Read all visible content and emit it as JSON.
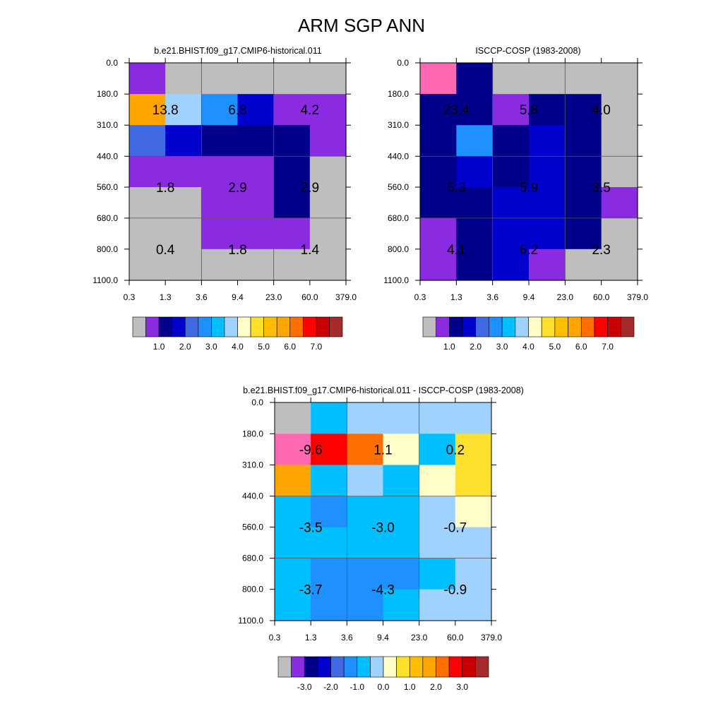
{
  "figure": {
    "title": "ARM SGP ANN"
  },
  "colors": {
    "missing": "#bebebe",
    "abs_palette": [
      "#8a2be2",
      "#00008b",
      "#0000cd",
      "#4169e1",
      "#1e90ff",
      "#00bfff",
      "#a0d2ff",
      "#ffffc8",
      "#ffe12d",
      "#ffbe00",
      "#ffa500",
      "#ff6e00",
      "#ff0000",
      "#c80000",
      "#a52a2a",
      "#ff69b4"
    ],
    "diff_palette": [
      "#8a2be2",
      "#00008b",
      "#0000cd",
      "#4169e1",
      "#1e90ff",
      "#00bfff",
      "#a0d2ff",
      "#ffffc8",
      "#ffe12d",
      "#ffbe00",
      "#ffa500",
      "#ff6e00",
      "#ff0000",
      "#c80000",
      "#a52a2a",
      "#ff69b4"
    ]
  },
  "chart_data": [
    {
      "type": "heatmap",
      "title": "b.e21.BHIST.f09_g17.CMIP6-historical.011",
      "x_ticks": [
        "0.3",
        "1.3",
        "3.6",
        "9.4",
        "23.0",
        "60.0",
        "379.0"
      ],
      "y_ticks": [
        "0.0",
        "180.0",
        "310.0",
        "440.0",
        "560.0",
        "680.0",
        "800.0",
        "1100.0"
      ],
      "cell_colors": [
        [
          0,
          16,
          16,
          16,
          16,
          16
        ],
        [
          10,
          6,
          4,
          2,
          0,
          0
        ],
        [
          3,
          2,
          1,
          1,
          1,
          0
        ],
        [
          0,
          0,
          0,
          0,
          1,
          16
        ],
        [
          16,
          16,
          0,
          0,
          1,
          16
        ],
        [
          16,
          16,
          0,
          0,
          0,
          16
        ],
        [
          16,
          16,
          16,
          16,
          16,
          16
        ]
      ],
      "group_labels": [
        [
          {
            "col": 0.5,
            "row": 1.5,
            "text": "13.8"
          },
          {
            "col": 2.5,
            "row": 1.5,
            "text": "6.8"
          },
          {
            "col": 4.5,
            "row": 1.5,
            "text": "4.2"
          }
        ],
        [
          {
            "col": 0.5,
            "row": 4,
            "text": "1.8"
          },
          {
            "col": 2.5,
            "row": 4,
            "text": "2.9"
          },
          {
            "col": 4.5,
            "row": 4,
            "text": "2.9"
          }
        ],
        [
          {
            "col": 0.5,
            "row": 6,
            "text": "0.4"
          },
          {
            "col": 2.5,
            "row": 6,
            "text": "1.8"
          },
          {
            "col": 4.5,
            "row": 6,
            "text": "1.4"
          }
        ]
      ],
      "colorbar_labels": [
        "1.0",
        "2.0",
        "3.0",
        "4.0",
        "5.0",
        "6.0",
        "7.0"
      ]
    },
    {
      "type": "heatmap",
      "title": "ISCCP-COSP (1983-2008)",
      "x_ticks": [
        "0.3",
        "1.3",
        "3.6",
        "9.4",
        "23.0",
        "60.0",
        "379.0"
      ],
      "y_ticks": [
        "0.0",
        "180.0",
        "310.0",
        "440.0",
        "560.0",
        "680.0",
        "800.0",
        "1100.0"
      ],
      "cell_colors": [
        [
          15,
          1,
          16,
          16,
          16,
          16
        ],
        [
          1,
          1,
          0,
          1,
          1,
          16
        ],
        [
          1,
          4,
          1,
          2,
          1,
          16
        ],
        [
          1,
          2,
          1,
          2,
          1,
          16
        ],
        [
          1,
          1,
          2,
          2,
          1,
          0
        ],
        [
          0,
          1,
          2,
          2,
          1,
          16
        ],
        [
          0,
          1,
          2,
          0,
          16,
          16
        ]
      ],
      "group_labels": [
        [
          {
            "col": 0.5,
            "row": 1.5,
            "text": "23.4"
          },
          {
            "col": 2.5,
            "row": 1.5,
            "text": "5.8"
          },
          {
            "col": 4.5,
            "row": 1.5,
            "text": "4.0"
          }
        ],
        [
          {
            "col": 0.5,
            "row": 4,
            "text": "5.3"
          },
          {
            "col": 2.5,
            "row": 4,
            "text": "5.9"
          },
          {
            "col": 4.5,
            "row": 4,
            "text": "3.5"
          }
        ],
        [
          {
            "col": 0.5,
            "row": 6,
            "text": "4.1"
          },
          {
            "col": 2.5,
            "row": 6,
            "text": "6.2"
          },
          {
            "col": 4.5,
            "row": 6,
            "text": "2.3"
          }
        ]
      ],
      "colorbar_labels": [
        "1.0",
        "2.0",
        "3.0",
        "4.0",
        "5.0",
        "6.0",
        "7.0"
      ]
    },
    {
      "type": "heatmap",
      "title": "b.e21.BHIST.f09_g17.CMIP6-historical.011 - ISCCP-COSP (1983-2008)",
      "x_ticks": [
        "0.3",
        "1.3",
        "3.6",
        "9.4",
        "23.0",
        "60.0",
        "379.0"
      ],
      "y_ticks": [
        "0.0",
        "180.0",
        "310.0",
        "440.0",
        "560.0",
        "680.0",
        "800.0",
        "1100.0"
      ],
      "cell_colors": [
        [
          16,
          5,
          6,
          6,
          6,
          6
        ],
        [
          15,
          12,
          11,
          7,
          5,
          8
        ],
        [
          10,
          5,
          6,
          5,
          7,
          8
        ],
        [
          5,
          4,
          5,
          5,
          6,
          7
        ],
        [
          5,
          5,
          5,
          5,
          6,
          6
        ],
        [
          5,
          4,
          4,
          4,
          5,
          6
        ],
        [
          5,
          4,
          4,
          5,
          6,
          6
        ]
      ],
      "group_labels": [
        [
          {
            "col": 0.5,
            "row": 1.5,
            "text": "-9.6"
          },
          {
            "col": 2.5,
            "row": 1.5,
            "text": "1.1"
          },
          {
            "col": 4.5,
            "row": 1.5,
            "text": "0.2"
          }
        ],
        [
          {
            "col": 0.5,
            "row": 4,
            "text": "-3.5"
          },
          {
            "col": 2.5,
            "row": 4,
            "text": "-3.0"
          },
          {
            "col": 4.5,
            "row": 4,
            "text": "-0.7"
          }
        ],
        [
          {
            "col": 0.5,
            "row": 6,
            "text": "-3.7"
          },
          {
            "col": 2.5,
            "row": 6,
            "text": "-4.3"
          },
          {
            "col": 4.5,
            "row": 6,
            "text": "-0.9"
          }
        ]
      ],
      "colorbar_labels": [
        "-3.0",
        "-2.0",
        "-1.0",
        "0.0",
        "1.0",
        "2.0",
        "3.0"
      ]
    }
  ]
}
